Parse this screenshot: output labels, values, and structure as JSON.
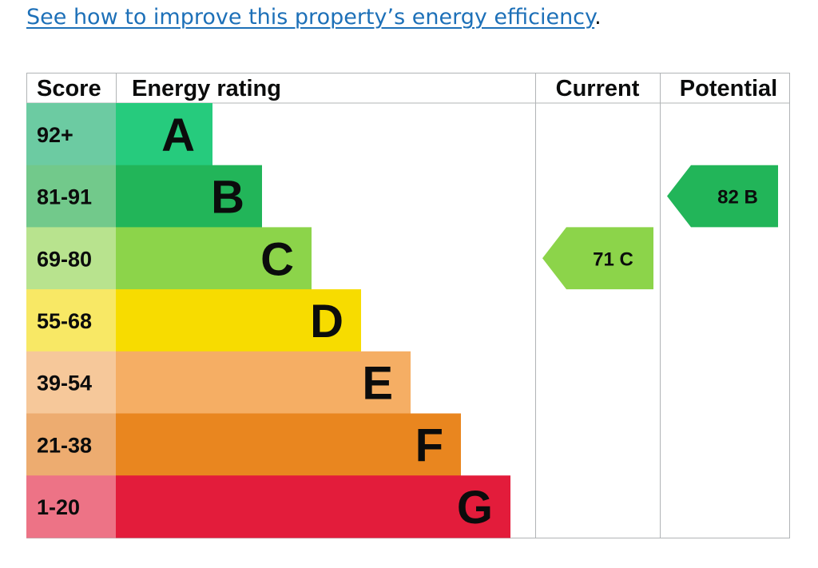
{
  "link": {
    "text": "See how to improve this property’s energy efficiency",
    "suffix": "."
  },
  "chart_data": {
    "type": "table",
    "headers": {
      "score": "Score",
      "rating": "Energy rating",
      "current": "Current",
      "potential": "Potential"
    },
    "bands": [
      {
        "letter": "A",
        "score": "92+",
        "color": "#26cb7d",
        "score_color": "#6ccba2"
      },
      {
        "letter": "B",
        "score": "81-91",
        "color": "#22b559",
        "score_color": "#72c98b"
      },
      {
        "letter": "C",
        "score": "69-80",
        "color": "#8cd44a",
        "score_color": "#b8e38e"
      },
      {
        "letter": "D",
        "score": "55-68",
        "color": "#f7dc00",
        "score_color": "#f8e865"
      },
      {
        "letter": "E",
        "score": "39-54",
        "color": "#f5ae64",
        "score_color": "#f6c89a"
      },
      {
        "letter": "F",
        "score": "21-38",
        "color": "#e9861f",
        "score_color": "#edac70"
      },
      {
        "letter": "G",
        "score": "1-20",
        "color": "#e31c3b",
        "score_color": "#ed7386"
      }
    ],
    "current": {
      "value": 71,
      "band": "C",
      "label": "71 C"
    },
    "potential": {
      "value": 82,
      "band": "B",
      "label": "82 B"
    }
  }
}
